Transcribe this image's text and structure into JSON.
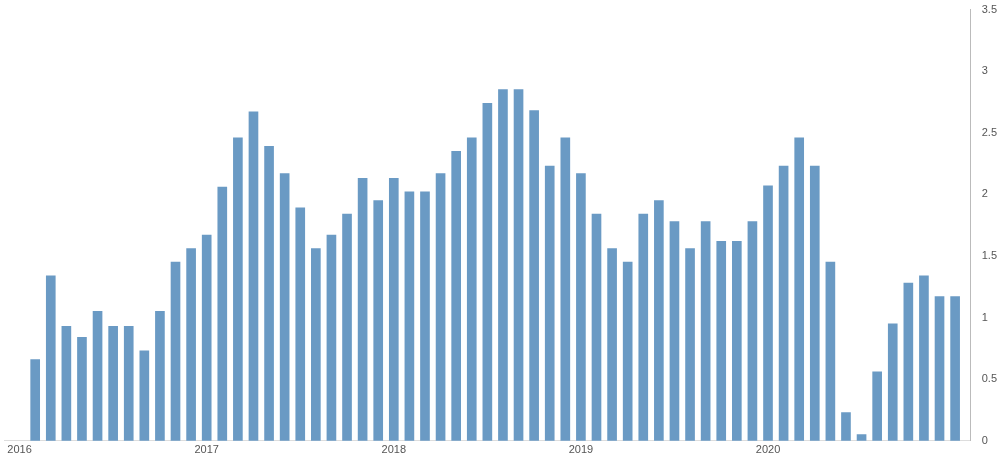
{
  "chart_data": {
    "type": "bar",
    "x": [
      "2016-02",
      "2016-03",
      "2016-04",
      "2016-05",
      "2016-06",
      "2016-07",
      "2016-08",
      "2016-09",
      "2016-10",
      "2016-11",
      "2016-12",
      "2017-01",
      "2017-02",
      "2017-03",
      "2017-04",
      "2017-05",
      "2017-06",
      "2017-07",
      "2017-08",
      "2017-09",
      "2017-10",
      "2017-11",
      "2017-12",
      "2018-01",
      "2018-02",
      "2018-03",
      "2018-04",
      "2018-05",
      "2018-06",
      "2018-07",
      "2018-08",
      "2018-09",
      "2018-10",
      "2018-11",
      "2018-12",
      "2019-01",
      "2019-02",
      "2019-03",
      "2019-04",
      "2019-05",
      "2019-06",
      "2019-07",
      "2019-08",
      "2019-09",
      "2019-10",
      "2019-11",
      "2019-12",
      "2020-01",
      "2020-02",
      "2020-03",
      "2020-04",
      "2020-05",
      "2020-06",
      "2020-07",
      "2020-08",
      "2020-09",
      "2020-10",
      "2020-11",
      "2020-12",
      "2021-01"
    ],
    "values": [
      0.66,
      1.34,
      0.93,
      0.84,
      1.05,
      0.93,
      0.93,
      0.73,
      1.05,
      1.45,
      1.56,
      1.67,
      2.06,
      2.46,
      2.67,
      2.39,
      2.17,
      1.89,
      1.56,
      1.67,
      1.84,
      2.13,
      1.95,
      2.13,
      2.02,
      2.02,
      2.17,
      2.35,
      2.46,
      2.74,
      2.85,
      2.85,
      2.68,
      2.23,
      2.46,
      2.17,
      1.84,
      1.56,
      1.45,
      1.84,
      1.95,
      1.78,
      1.56,
      1.78,
      1.62,
      1.62,
      1.78,
      2.07,
      2.23,
      2.46,
      2.23,
      1.45,
      0.23,
      0.05,
      0.56,
      0.95,
      1.28,
      1.34,
      1.17,
      1.17
    ],
    "color": "#6a9ac4",
    "xlim": [
      "2015-12",
      "2021-02"
    ],
    "xticks": [
      "2016",
      "2017",
      "2018",
      "2019",
      "2020"
    ],
    "ylim": [
      0,
      3.5
    ],
    "yticks": [
      0,
      0.5,
      1,
      1.5,
      2,
      2.5,
      3,
      3.5
    ],
    "grid": false,
    "legend": false
  }
}
